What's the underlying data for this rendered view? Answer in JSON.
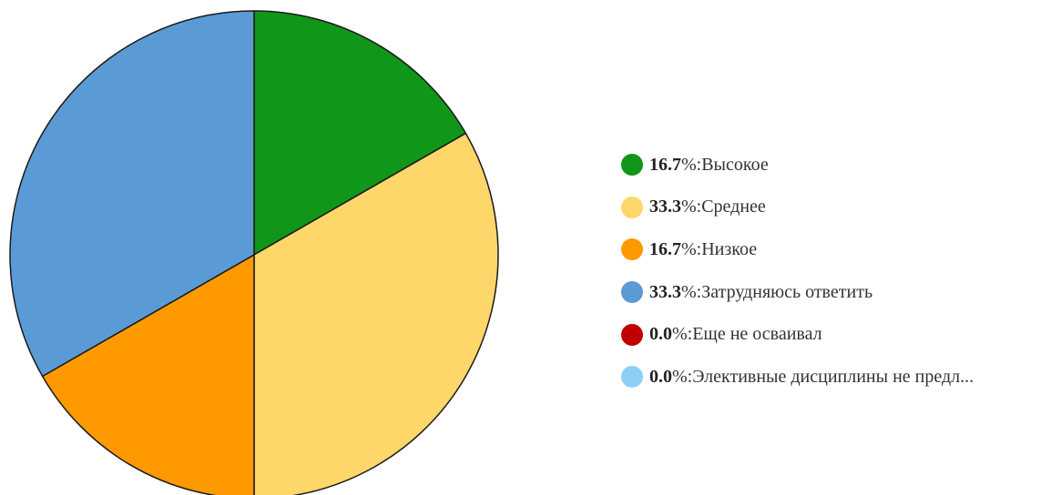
{
  "chart_data": {
    "type": "pie",
    "slices": [
      {
        "label": "Высокое",
        "value": 16.7,
        "display": "16.7",
        "color": "#109618"
      },
      {
        "label": "Среднее",
        "value": 33.3,
        "display": "33.3",
        "color": "#fdd76a"
      },
      {
        "label": "Низкое",
        "value": 16.7,
        "display": "16.7",
        "color": "#ff9900"
      },
      {
        "label": "Затрудняюсь ответить",
        "value": 33.3,
        "display": "33.3",
        "color": "#5b9bd5"
      },
      {
        "label": "Еще не осваивал",
        "value": 0.0,
        "display": "0.0",
        "color": "#c00000"
      },
      {
        "label": "Элективные дисциплины не предл...",
        "value": 0.0,
        "display": "0.0",
        "color": "#8ecff5"
      }
    ],
    "legend_position": "right",
    "pie_slice_order": [
      0,
      1,
      2,
      3
    ],
    "start_angle": "top",
    "direction": "clockwise",
    "percent_suffix": "%: "
  }
}
